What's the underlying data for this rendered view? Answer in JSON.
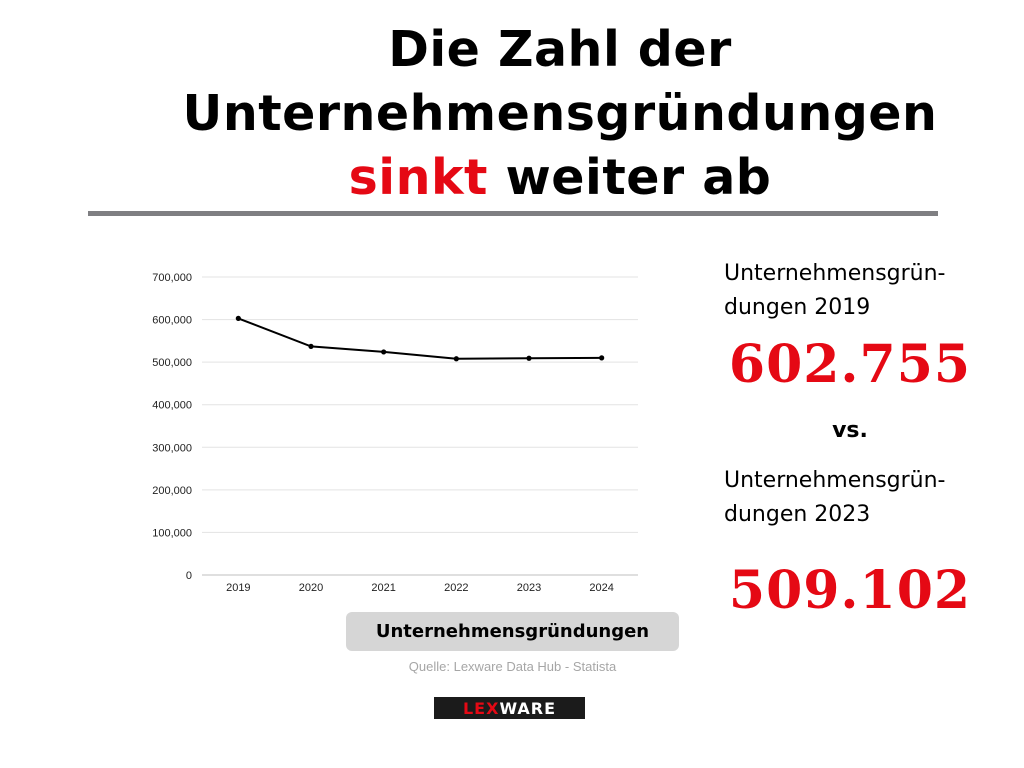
{
  "title": {
    "line1": "Die Zahl der",
    "line2": "Unternehmensgründungen",
    "accent": "sinkt",
    "rest": " weiter ab"
  },
  "chart_data": {
    "type": "line",
    "x": [
      "2019",
      "2020",
      "2021",
      "2022",
      "2023",
      "2024"
    ],
    "series": [
      {
        "values": [
          602755,
          537000,
          524000,
          508000,
          509102,
          510000
        ]
      }
    ],
    "ylim": [
      0,
      700000
    ],
    "yticks": [
      0,
      100000,
      200000,
      300000,
      400000,
      500000,
      600000,
      700000
    ],
    "ytick_labels": [
      "0",
      "100,000",
      "200,000",
      "300,000",
      "400,000",
      "500,000",
      "600,000",
      "700,000"
    ],
    "grid": true,
    "line_color": "#000000",
    "label": "Unternehmensgründungen"
  },
  "source": "Quelle: Lexware Data Hub - Statista",
  "logo": {
    "part1": "LEX",
    "part2": "WARE"
  },
  "stats": {
    "label_2019_a": "Unternehmensgrün-",
    "label_2019_b": "dungen 2019",
    "value_2019": "602.755",
    "vs": "vs.",
    "label_2023_a": "Unternehmensgrün-",
    "label_2023_b": "dungen 2023",
    "value_2023": "509.102"
  },
  "colors": {
    "accent": "#e50914",
    "rule": "#7f7f82",
    "label_bg": "#d6d6d6"
  }
}
